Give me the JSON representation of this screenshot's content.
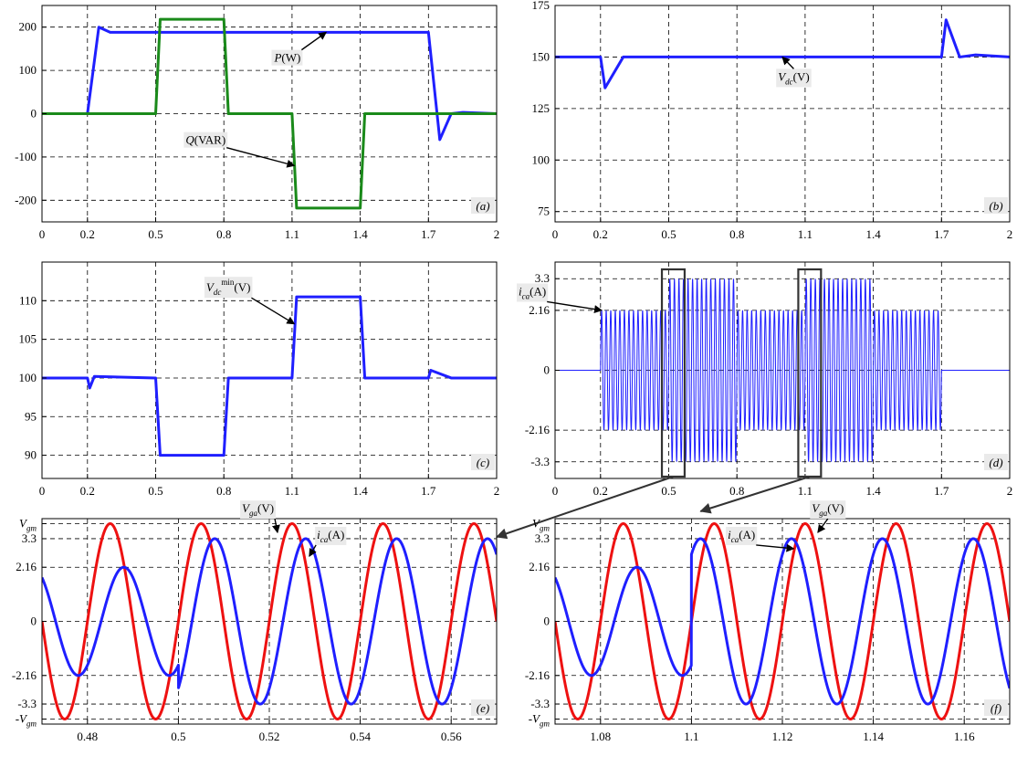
{
  "colors": {
    "blue": "#1f1fff",
    "green": "#1a8a1a",
    "red": "#ee1111"
  },
  "chart_data": [
    {
      "id": "a",
      "type": "line",
      "panel_label": "(a)",
      "xlim": [
        0,
        2
      ],
      "ylim": [
        -250,
        250
      ],
      "xticks": [
        0,
        0.2,
        0.5,
        0.8,
        1.1,
        1.4,
        1.7,
        2
      ],
      "xtick_labels": [
        "0",
        "0.2",
        "0.5",
        "0.8",
        "1.1",
        "1.4",
        "1.7",
        "2"
      ],
      "yticks": [
        200,
        100,
        0,
        -100,
        -200
      ],
      "ytick_labels": [
        "200",
        "100",
        "0",
        "-100",
        "-200"
      ],
      "series": [
        {
          "name": "P(W)",
          "label_main": "P",
          "label_unit": "(W)",
          "color": "blue",
          "x": [
            0,
            0.2,
            0.25,
            0.3,
            1.7,
            1.75,
            1.8,
            1.85,
            2
          ],
          "y": [
            0,
            0,
            200,
            188,
            188,
            -60,
            0,
            3,
            0
          ]
        },
        {
          "name": "Q(VAR)",
          "label_main": "Q",
          "label_unit": "(VAR)",
          "color": "green",
          "x": [
            0,
            0.5,
            0.52,
            0.8,
            0.82,
            1.1,
            1.12,
            1.4,
            1.42,
            2
          ],
          "y": [
            0,
            0,
            218,
            218,
            0,
            0,
            -218,
            -218,
            0,
            0
          ]
        }
      ]
    },
    {
      "id": "b",
      "type": "line",
      "panel_label": "(b)",
      "xlim": [
        0,
        2
      ],
      "ylim": [
        70,
        175
      ],
      "xticks": [
        0,
        0.2,
        0.5,
        0.8,
        1.1,
        1.4,
        1.7,
        2
      ],
      "xtick_labels": [
        "0",
        "0.2",
        "0.5",
        "0.8",
        "1.1",
        "1.4",
        "1.7",
        "2"
      ],
      "yticks": [
        175,
        150,
        125,
        100,
        75
      ],
      "ytick_labels": [
        "175",
        "150",
        "125",
        "100",
        "75"
      ],
      "series": [
        {
          "name": "Vdc(V)",
          "label_main": "V",
          "label_sub": "dc",
          "label_unit": "(V)",
          "color": "blue",
          "x": [
            0,
            0.2,
            0.22,
            0.3,
            1.7,
            1.72,
            1.78,
            1.85,
            2
          ],
          "y": [
            150,
            150,
            135,
            150,
            150,
            168,
            150,
            151,
            150
          ]
        }
      ]
    },
    {
      "id": "c",
      "type": "line",
      "panel_label": "(c)",
      "xlim": [
        0,
        2
      ],
      "ylim": [
        87,
        115
      ],
      "xticks": [
        0,
        0.2,
        0.5,
        0.8,
        1.1,
        1.4,
        1.7,
        2
      ],
      "xtick_labels": [
        "0",
        "0.2",
        "0.5",
        "0.8",
        "1.1",
        "1.4",
        "1.7",
        "2"
      ],
      "yticks": [
        110,
        105,
        100,
        95,
        90
      ],
      "ytick_labels": [
        "110",
        "105",
        "100",
        "95",
        "90"
      ],
      "series": [
        {
          "name": "Vdc min(V)",
          "label_main": "V",
          "label_sub": "dc",
          "label_sup": "min",
          "label_unit": "(V)",
          "color": "blue",
          "x": [
            0,
            0.2,
            0.21,
            0.23,
            0.5,
            0.52,
            0.8,
            0.82,
            1.1,
            1.12,
            1.4,
            1.42,
            1.7,
            1.71,
            1.8,
            2
          ],
          "y": [
            100,
            100,
            98.7,
            100.2,
            100,
            90,
            90,
            100,
            100,
            110.5,
            110.5,
            100,
            100,
            101,
            100,
            100
          ]
        }
      ]
    },
    {
      "id": "d",
      "type": "line",
      "panel_label": "(d)",
      "xlim": [
        0,
        2
      ],
      "ylim": [
        -3.9,
        3.9
      ],
      "xticks": [
        0,
        0.2,
        0.5,
        0.8,
        1.1,
        1.4,
        1.7,
        2
      ],
      "xtick_labels": [
        "0",
        "0.2",
        "0.5",
        "0.8",
        "1.1",
        "1.4",
        "1.7",
        "2"
      ],
      "yticks": [
        3.3,
        2.16,
        0,
        -2.16,
        -3.3
      ],
      "ytick_labels": [
        "3.3",
        "2.16",
        "0",
        "-2.16",
        "-3.3"
      ],
      "series": [
        {
          "name": "ica(A)",
          "label_main": "i",
          "label_sub": "ca",
          "label_unit": "(A)",
          "color": "blue",
          "frequency_hz": 50,
          "amplitude_segments": [
            {
              "from": 0,
              "to": 0.2,
              "amp": 0
            },
            {
              "from": 0.2,
              "to": 0.5,
              "amp": 2.16
            },
            {
              "from": 0.5,
              "to": 0.8,
              "amp": 3.3
            },
            {
              "from": 0.8,
              "to": 1.1,
              "amp": 2.16
            },
            {
              "from": 1.1,
              "to": 1.4,
              "amp": 3.3
            },
            {
              "from": 1.4,
              "to": 1.7,
              "amp": 2.16
            },
            {
              "from": 1.7,
              "to": 2,
              "amp": 0
            }
          ]
        }
      ],
      "zoom_windows": [
        [
          0.47,
          0.57
        ],
        [
          1.07,
          1.17
        ]
      ]
    },
    {
      "id": "e",
      "type": "line",
      "panel_label": "(e)",
      "xlim": [
        0.47,
        0.57
      ],
      "ylim": [
        -4.1,
        4.1
      ],
      "xticks": [
        0.48,
        0.5,
        0.52,
        0.54,
        0.56
      ],
      "xtick_labels": [
        "0.48",
        "0.5",
        "0.52",
        "0.54",
        "0.56"
      ],
      "yticks": [
        3.9,
        3.3,
        2.16,
        0,
        -2.16,
        -3.3,
        -3.9
      ],
      "ytick_labels": [
        "Vgm",
        "3.3",
        "2.16",
        "0",
        "-2.16",
        "-3.3",
        "-Vgm"
      ],
      "series": [
        {
          "name": "Vga(V)",
          "label_main": "V",
          "label_sub": "ga",
          "label_unit": "(V)",
          "color": "red",
          "frequency_hz": 50,
          "amplitude": 3.9,
          "phase_deg": 0
        },
        {
          "name": "ica(A)",
          "label_main": "i",
          "label_sub": "ca",
          "label_unit": "(A)",
          "color": "blue",
          "frequency_hz": 50,
          "amp_before": 2.16,
          "amp_after": 3.3,
          "step_time": 0.5,
          "phase_before_deg": -54,
          "phase_after_deg": -54
        }
      ]
    },
    {
      "id": "f",
      "type": "line",
      "panel_label": "(f)",
      "xlim": [
        1.07,
        1.17
      ],
      "ylim": [
        -4.1,
        4.1
      ],
      "xticks": [
        1.08,
        1.1,
        1.12,
        1.14,
        1.16
      ],
      "xtick_labels": [
        "1.08",
        "1.1",
        "1.12",
        "1.14",
        "1.16"
      ],
      "yticks": [
        3.9,
        3.3,
        2.16,
        0,
        -2.16,
        -3.3,
        -3.9
      ],
      "ytick_labels": [
        "Vgm",
        "3.3",
        "2.16",
        "0",
        "-2.16",
        "-3.3",
        "-Vgm"
      ],
      "series": [
        {
          "name": "Vga(V)",
          "label_main": "V",
          "label_sub": "ga",
          "label_unit": "(V)",
          "color": "red",
          "frequency_hz": 50,
          "amplitude": 3.9,
          "phase_deg": 0
        },
        {
          "name": "ica(A)",
          "label_main": "i",
          "label_sub": "ca",
          "label_unit": "(A)",
          "color": "blue",
          "frequency_hz": 50,
          "amp_before": 2.16,
          "amp_after": 3.3,
          "step_time": 1.1,
          "phase_before_deg": -54,
          "phase_after_deg": 54
        }
      ]
    }
  ]
}
